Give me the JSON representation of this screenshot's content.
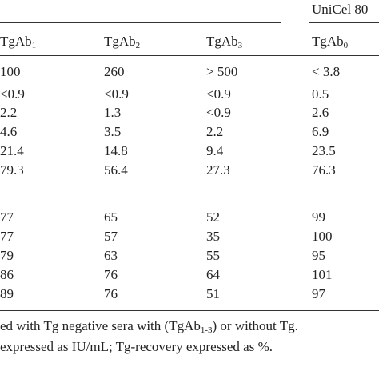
{
  "header": {
    "group": "UniCel 80",
    "columns": [
      {
        "text": "TgAb",
        "sub": "1"
      },
      {
        "text": "TgAb",
        "sub": "2"
      },
      {
        "text": "TgAb",
        "sub": "3"
      },
      {
        "text": "TgAb",
        "sub": "0"
      }
    ]
  },
  "table": {
    "rows": [
      [
        "100",
        "260",
        "> 500",
        "< 3.8"
      ],
      [
        "<0.9",
        "<0.9",
        "<0.9",
        "0.5"
      ],
      [
        "2.2",
        "1.3",
        "<0.9",
        "2.6"
      ],
      [
        "4.6",
        "3.5",
        "2.2",
        "6.9"
      ],
      [
        "21.4",
        "14.8",
        "9.4",
        "23.5"
      ],
      [
        "79.3",
        "56.4",
        "27.3",
        "76.3"
      ],
      [
        "77",
        "65",
        "52",
        "99"
      ],
      [
        "77",
        "57",
        "35",
        "100"
      ],
      [
        "79",
        "63",
        "55",
        "95"
      ],
      [
        "86",
        "76",
        "64",
        "101"
      ],
      [
        "89",
        "76",
        "51",
        "97"
      ]
    ]
  },
  "footnote": {
    "lines": [
      [
        "ed with Tg negative sera with (TgAb",
        "1-3",
        ") or without Tg."
      ],
      [
        " expressed as IU/mL; Tg-recovery expressed as %."
      ]
    ]
  }
}
